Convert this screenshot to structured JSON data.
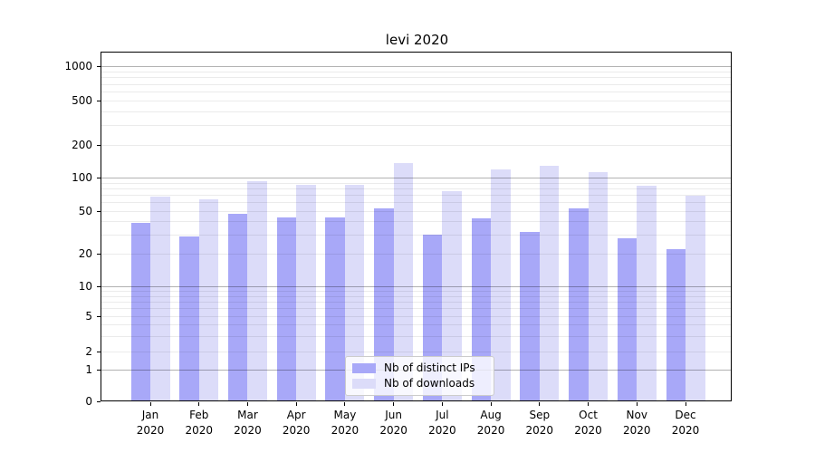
{
  "chart_data": {
    "type": "bar",
    "title": "levi 2020",
    "yscale": "symlog",
    "ylim": [
      0,
      1400
    ],
    "grid": "horizontal major and minor gridlines, drawn over bars",
    "legend_position": "lower center",
    "categories": [
      {
        "month": "Jan",
        "year": "2020"
      },
      {
        "month": "Feb",
        "year": "2020"
      },
      {
        "month": "Mar",
        "year": "2020"
      },
      {
        "month": "Apr",
        "year": "2020"
      },
      {
        "month": "May",
        "year": "2020"
      },
      {
        "month": "Jun",
        "year": "2020"
      },
      {
        "month": "Jul",
        "year": "2020"
      },
      {
        "month": "Aug",
        "year": "2020"
      },
      {
        "month": "Sep",
        "year": "2020"
      },
      {
        "month": "Oct",
        "year": "2020"
      },
      {
        "month": "Nov",
        "year": "2020"
      },
      {
        "month": "Dec",
        "year": "2020"
      }
    ],
    "series": [
      {
        "name": "Nb of distinct IPs",
        "color": "#a8a8f8",
        "values": [
          39,
          29,
          47,
          44,
          44,
          53,
          30,
          43,
          32,
          53,
          28,
          22
        ]
      },
      {
        "name": "Nb of downloads",
        "color": "#dcdcf9",
        "values": [
          67,
          64,
          92,
          86,
          86,
          136,
          76,
          119,
          129,
          112,
          84,
          69
        ]
      }
    ],
    "y_ticks": [
      0,
      1,
      2,
      5,
      10,
      20,
      50,
      100,
      200,
      500,
      1000
    ]
  },
  "colors": {
    "background": "#ffffff",
    "axis": "#000000",
    "major_grid": "#b3b3b3",
    "minor_grid": "#e9e9e9",
    "legend_border": "#cccccc"
  }
}
